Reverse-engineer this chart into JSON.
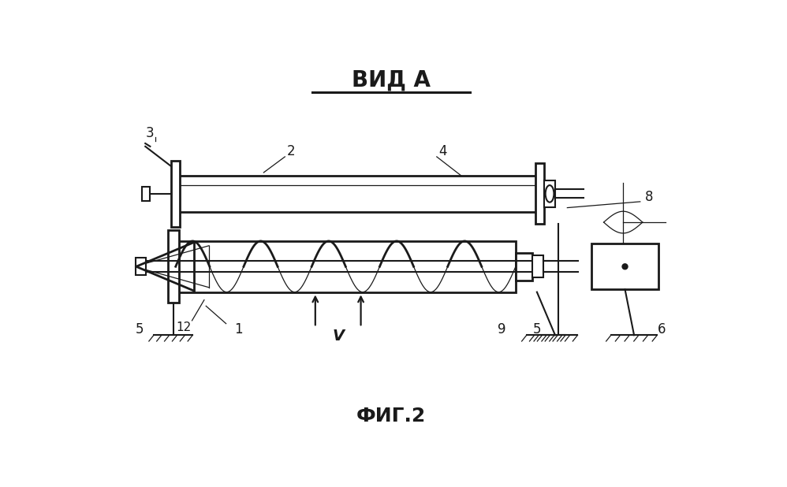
{
  "title": "ВИД А",
  "subtitle": "ФИГ.2",
  "background_color": "#ffffff",
  "line_color": "#1a1a1a",
  "title_fontsize": 20,
  "subtitle_fontsize": 18,
  "fig_width": 9.98,
  "fig_height": 6.18,
  "dpi": 100
}
